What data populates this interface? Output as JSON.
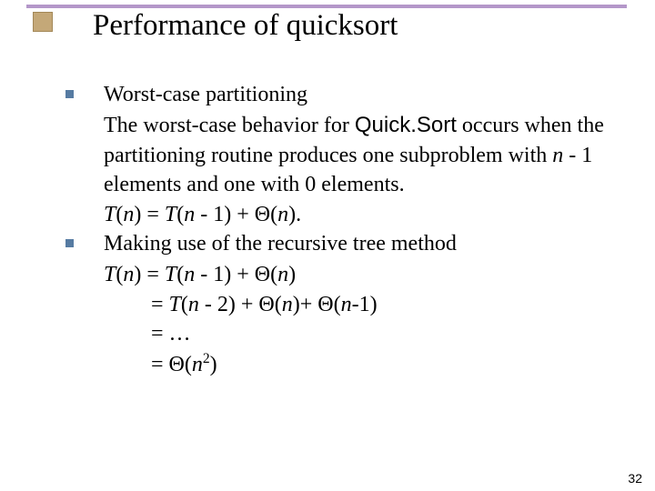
{
  "slide": {
    "title": "Performance of quicksort",
    "accent_bar_color": "#b497c9",
    "title_box_color": "#c4a878",
    "bullet_color": "#567ba2",
    "page_number": "32"
  },
  "bullets": [
    {
      "lead": "Worst-case partitioning",
      "lines": [
        {
          "html": "The worst-case behavior for <span class='sansf'>Quick.Sort</span> occurs when the partitioning routine produces one subproblem with <span class='ital'>n</span> - 1 elements and one with 0 elements."
        },
        {
          "html": "<span class='ital'>T</span>(<span class='ital'>n</span>) = <span class='ital'>T</span>(<span class='ital'>n</span> - 1) + Θ(<span class='ital'>n</span>)."
        }
      ]
    },
    {
      "lead": "Making use of the recursive tree method",
      "lines": [
        {
          "html": "<span class='ital'>T</span>(<span class='ital'>n</span>) = <span class='ital'>T</span>(<span class='ital'>n</span> - 1) + Θ(<span class='ital'>n</span>)"
        },
        {
          "html": "= <span class='ital'>T</span>(<span class='ital'>n</span> - 2) + Θ(<span class='ital'>n</span>)+ Θ(<span class='ital'>n</span>-1)",
          "indent": true
        },
        {
          "html": "= …",
          "indent": true
        },
        {
          "html": "= Θ(<span class='ital'>n</span><span class='sup'>2</span>)",
          "indent": true
        }
      ]
    }
  ]
}
